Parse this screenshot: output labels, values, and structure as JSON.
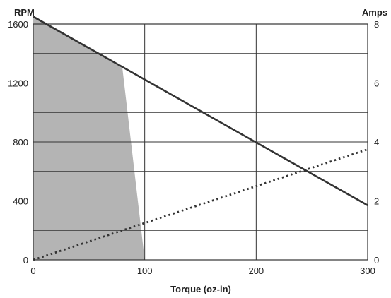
{
  "chart_data": {
    "type": "line",
    "title": "",
    "xlabel": "Torque (oz-in)",
    "ylabel_left": "RPM",
    "ylabel_right": "Amps",
    "xlim": [
      0,
      300
    ],
    "ylim_left": [
      0,
      1600
    ],
    "ylim_right": [
      0,
      8
    ],
    "x_ticks": [
      "0",
      "100",
      "200",
      "300"
    ],
    "y_left_ticks": [
      "0",
      "400",
      "800",
      "1200",
      "1600"
    ],
    "y_right_ticks": [
      "0",
      "2",
      "4",
      "6",
      "8"
    ],
    "grid": true,
    "series": [
      {
        "axis": "left",
        "style": "solid",
        "points": [
          [
            0,
            1650
          ],
          [
            300,
            370
          ]
        ]
      },
      {
        "axis": "right",
        "style": "dotted",
        "points": [
          [
            0,
            0
          ],
          [
            300,
            3.75
          ]
        ]
      }
    ],
    "shaded_region": {
      "axis": "left",
      "points": [
        [
          0,
          0
        ],
        [
          0,
          1650
        ],
        [
          80,
          1300
        ],
        [
          100,
          0
        ]
      ]
    },
    "colors": {
      "line": "#333333",
      "shade": "#b4b4b4",
      "grid": "#333333"
    }
  }
}
